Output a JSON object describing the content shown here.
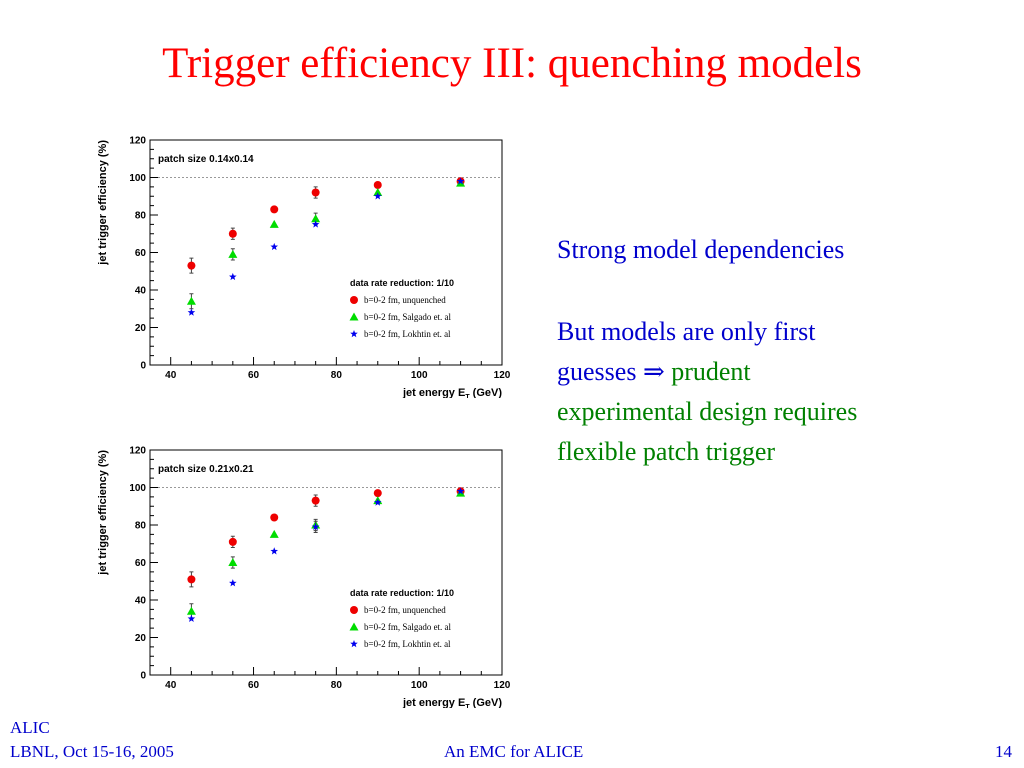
{
  "slide": {
    "title": "Trigger efficiency III: quenching models",
    "text_1": "Strong model dependencies",
    "text_2_blue_a": "But models are only first",
    "text_2_blue_b": "guesses",
    "arrow": "⇒",
    "text_2_green_a": "prudent",
    "text_2_green_b": "experimental design requires",
    "text_2_green_c": "flexible patch trigger",
    "footer_org": "ALIC",
    "footer_left": "LBNL, Oct 15-16, 2005",
    "footer_center": "An EMC for ALICE",
    "footer_page": "14"
  },
  "chart_data": [
    {
      "type": "scatter",
      "patch_label": "patch size 0.14x0.14",
      "legend_title": "data rate reduction: 1/10",
      "xlabel": "jet energy E",
      "xlabel_sub": "T",
      "xlabel_unit": " (GeV)",
      "ylabel": "jet trigger efficiency (%)",
      "xlim": [
        35,
        120
      ],
      "ylim": [
        0,
        120
      ],
      "xticks": [
        40,
        60,
        80,
        100,
        120
      ],
      "yticks": [
        0,
        20,
        40,
        60,
        80,
        100,
        120
      ],
      "reference_line": 100,
      "series": [
        {
          "name": "b=0-2 fm, unquenched",
          "marker": "circle",
          "color": "#ee0000",
          "x": [
            45,
            55,
            65,
            75,
            90,
            110
          ],
          "y": [
            53,
            70,
            83,
            92,
            96,
            98
          ],
          "err": [
            4,
            3,
            0,
            3,
            0,
            0
          ]
        },
        {
          "name": "b=0-2 fm, Salgado et. al",
          "marker": "triangle",
          "color": "#00dd00",
          "x": [
            45,
            55,
            65,
            75,
            90,
            110
          ],
          "y": [
            34,
            59,
            75,
            78,
            92,
            97
          ],
          "err": [
            4,
            3,
            0,
            3,
            0,
            0
          ]
        },
        {
          "name": "b=0-2 fm, Lokhtin et. al",
          "marker": "star",
          "color": "#0000ee",
          "x": [
            45,
            55,
            65,
            75,
            90,
            110
          ],
          "y": [
            28,
            47,
            63,
            75,
            90,
            98
          ],
          "err": [
            0,
            0,
            0,
            0,
            0,
            0
          ]
        }
      ]
    },
    {
      "type": "scatter",
      "patch_label": "patch size 0.21x0.21",
      "legend_title": "data rate reduction: 1/10",
      "xlabel": "jet energy E",
      "xlabel_sub": "T",
      "xlabel_unit": " (GeV)",
      "ylabel": "jet trigger efficiency (%)",
      "xlim": [
        35,
        120
      ],
      "ylim": [
        0,
        120
      ],
      "xticks": [
        40,
        60,
        80,
        100,
        120
      ],
      "yticks": [
        0,
        20,
        40,
        60,
        80,
        100,
        120
      ],
      "reference_line": 100,
      "series": [
        {
          "name": "b=0-2 fm, unquenched",
          "marker": "circle",
          "color": "#ee0000",
          "x": [
            45,
            55,
            65,
            75,
            90,
            110
          ],
          "y": [
            51,
            71,
            84,
            93,
            97,
            98
          ],
          "err": [
            4,
            3,
            0,
            3,
            0,
            0
          ]
        },
        {
          "name": "b=0-2 fm, Salgado et. al",
          "marker": "triangle",
          "color": "#00dd00",
          "x": [
            45,
            55,
            65,
            75,
            90,
            110
          ],
          "y": [
            34,
            60,
            75,
            80,
            93,
            97
          ],
          "err": [
            4,
            3,
            0,
            3,
            0,
            0
          ]
        },
        {
          "name": "b=0-2 fm, Lokhtin et. al",
          "marker": "star",
          "color": "#0000ee",
          "x": [
            45,
            55,
            65,
            75,
            90,
            110
          ],
          "y": [
            30,
            49,
            66,
            79,
            92,
            98
          ],
          "err": [
            0,
            0,
            0,
            3,
            0,
            0
          ]
        }
      ]
    }
  ]
}
